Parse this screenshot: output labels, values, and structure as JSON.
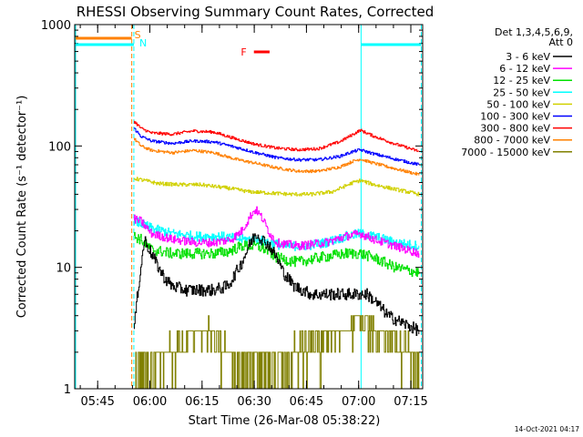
{
  "chart_data": {
    "type": "line",
    "title": "RHESSI Observing Summary Count Rates, Corrected",
    "xlabel": "Start Time (26-Mar-08 05:38:22)",
    "ylabel": "Corrected Count Rate (s⁻¹ detector⁻¹)",
    "yscale": "log",
    "ylim": [
      1,
      1000
    ],
    "xlim_minutes": [
      0,
      100
    ],
    "xtick_labels": [
      "05:45",
      "06:00",
      "06:15",
      "06:30",
      "06:45",
      "07:00",
      "07:15"
    ],
    "xtick_minutes": [
      6.6,
      21.6,
      36.6,
      51.6,
      66.6,
      81.6,
      96.6
    ],
    "ytick_labels": [
      "1",
      "10",
      "100",
      "1000"
    ],
    "ytick_values": [
      1,
      10,
      100,
      1000
    ],
    "legend_position": "right",
    "legend_header": [
      "Det 1,3,4,5,6,9,",
      "Att 0"
    ],
    "footer_date": "14-Oct-2021 04:17",
    "data_start_minute": 17.0,
    "night_start_minute": 82.3,
    "data_end_minute": 99.6,
    "series": [
      {
        "name": "3 - 6 keV",
        "color": "#000000",
        "noise": 0.05,
        "quantized": false,
        "points": [
          [
            17,
            3
          ],
          [
            18,
            6
          ],
          [
            20,
            17
          ],
          [
            22,
            13
          ],
          [
            24,
            10
          ],
          [
            26,
            8
          ],
          [
            28,
            7
          ],
          [
            32,
            6.5
          ],
          [
            40,
            6.5
          ],
          [
            44,
            7
          ],
          [
            48,
            11
          ],
          [
            50,
            15
          ],
          [
            52,
            19
          ],
          [
            56,
            15
          ],
          [
            58,
            12
          ],
          [
            60,
            9
          ],
          [
            63,
            7
          ],
          [
            68,
            6
          ],
          [
            75,
            6
          ],
          [
            80,
            6
          ],
          [
            84,
            6
          ],
          [
            87,
            5
          ],
          [
            90,
            4
          ],
          [
            94,
            3.5
          ],
          [
            99,
            3
          ]
        ]
      },
      {
        "name": "6 - 12 keV",
        "color": "#ff00ff",
        "noise": 0.035,
        "quantized": false,
        "points": [
          [
            17,
            25
          ],
          [
            19,
            24
          ],
          [
            22,
            19
          ],
          [
            28,
            17
          ],
          [
            35,
            16
          ],
          [
            40,
            16
          ],
          [
            45,
            17
          ],
          [
            48,
            20
          ],
          [
            51,
            28
          ],
          [
            52,
            30
          ],
          [
            54,
            25
          ],
          [
            56,
            19
          ],
          [
            58,
            16
          ],
          [
            64,
            15
          ],
          [
            72,
            16
          ],
          [
            78,
            18
          ],
          [
            82,
            19
          ],
          [
            86,
            17
          ],
          [
            92,
            15
          ],
          [
            99,
            13
          ]
        ]
      },
      {
        "name": "12 - 25 keV",
        "color": "#00e000",
        "noise": 0.045,
        "quantized": false,
        "points": [
          [
            17,
            18
          ],
          [
            19,
            17
          ],
          [
            22,
            14
          ],
          [
            28,
            13
          ],
          [
            34,
            13
          ],
          [
            40,
            13
          ],
          [
            44,
            13.5
          ],
          [
            48,
            15
          ],
          [
            52,
            15
          ],
          [
            55,
            14
          ],
          [
            58,
            12
          ],
          [
            64,
            11
          ],
          [
            70,
            12
          ],
          [
            78,
            13
          ],
          [
            82,
            13
          ],
          [
            86,
            12
          ],
          [
            92,
            10
          ],
          [
            99,
            9
          ]
        ]
      },
      {
        "name": "25 - 50 keV",
        "color": "#00ffff",
        "noise": 0.04,
        "quantized": false,
        "points": [
          [
            17,
            24
          ],
          [
            19,
            23
          ],
          [
            22,
            21
          ],
          [
            28,
            19
          ],
          [
            35,
            18
          ],
          [
            42,
            18
          ],
          [
            48,
            17
          ],
          [
            52,
            17
          ],
          [
            56,
            16
          ],
          [
            60,
            15
          ],
          [
            66,
            15
          ],
          [
            72,
            16
          ],
          [
            78,
            18
          ],
          [
            82,
            19
          ],
          [
            86,
            18
          ],
          [
            92,
            16
          ],
          [
            99,
            15
          ]
        ]
      },
      {
        "name": "50 - 100 keV",
        "color": "#d0d000",
        "noise": 0.015,
        "quantized": false,
        "points": [
          [
            17,
            54
          ],
          [
            20,
            52
          ],
          [
            24,
            49
          ],
          [
            30,
            48
          ],
          [
            36,
            48
          ],
          [
            44,
            45
          ],
          [
            50,
            42
          ],
          [
            56,
            41
          ],
          [
            62,
            40
          ],
          [
            68,
            40
          ],
          [
            74,
            42
          ],
          [
            80,
            50
          ],
          [
            82,
            52
          ],
          [
            86,
            48
          ],
          [
            92,
            44
          ],
          [
            99,
            40
          ]
        ]
      },
      {
        "name": "100 - 300 keV",
        "color": "#0000ff",
        "noise": 0.012,
        "quantized": false,
        "points": [
          [
            17,
            140
          ],
          [
            19,
            120
          ],
          [
            22,
            110
          ],
          [
            28,
            105
          ],
          [
            34,
            110
          ],
          [
            40,
            108
          ],
          [
            46,
            98
          ],
          [
            52,
            88
          ],
          [
            58,
            80
          ],
          [
            64,
            77
          ],
          [
            70,
            77
          ],
          [
            76,
            82
          ],
          [
            80,
            90
          ],
          [
            82,
            93
          ],
          [
            86,
            86
          ],
          [
            92,
            78
          ],
          [
            99,
            70
          ]
        ]
      },
      {
        "name": "300 - 800 keV",
        "color": "#ff0000",
        "noise": 0.012,
        "quantized": false,
        "points": [
          [
            17,
            160
          ],
          [
            19,
            140
          ],
          [
            22,
            128
          ],
          [
            28,
            125
          ],
          [
            34,
            133
          ],
          [
            40,
            130
          ],
          [
            46,
            115
          ],
          [
            52,
            103
          ],
          [
            58,
            96
          ],
          [
            64,
            93
          ],
          [
            70,
            95
          ],
          [
            76,
            108
          ],
          [
            80,
            125
          ],
          [
            82,
            135
          ],
          [
            86,
            120
          ],
          [
            92,
            104
          ],
          [
            99,
            90
          ]
        ]
      },
      {
        "name": "800 - 7000 keV",
        "color": "#ff8000",
        "noise": 0.012,
        "quantized": false,
        "points": [
          [
            17,
            115
          ],
          [
            19,
            100
          ],
          [
            22,
            92
          ],
          [
            28,
            88
          ],
          [
            34,
            92
          ],
          [
            40,
            88
          ],
          [
            46,
            78
          ],
          [
            52,
            72
          ],
          [
            58,
            66
          ],
          [
            64,
            62
          ],
          [
            70,
            62
          ],
          [
            76,
            67
          ],
          [
            80,
            75
          ],
          [
            82,
            78
          ],
          [
            86,
            72
          ],
          [
            92,
            65
          ],
          [
            99,
            58
          ]
        ]
      },
      {
        "name": "7000 - 15000 keV",
        "color": "#808000",
        "noise": 0,
        "quantized": true,
        "levels": [
          1,
          2,
          3,
          4
        ],
        "points": [
          [
            17,
            1.6
          ],
          [
            22,
            1.7
          ],
          [
            28,
            2.2
          ],
          [
            34,
            2.8
          ],
          [
            38,
            3.2
          ],
          [
            42,
            2.5
          ],
          [
            46,
            1.8
          ],
          [
            50,
            1.6
          ],
          [
            54,
            1.6
          ],
          [
            60,
            1.8
          ],
          [
            64,
            2.2
          ],
          [
            70,
            2.6
          ],
          [
            76,
            3.2
          ],
          [
            80,
            3.6
          ],
          [
            84,
            3.4
          ],
          [
            88,
            3
          ],
          [
            92,
            2.6
          ],
          [
            96,
            2.1
          ],
          [
            99,
            1.8
          ]
        ]
      }
    ],
    "flags": [
      {
        "label": "S",
        "color": "#ff8000",
        "start_minute": 0,
        "end_minute": 16.4
      },
      {
        "label": "N",
        "color": "#00ffff",
        "start_minute": 0,
        "end_minute": 17.0
      },
      {
        "label": "N",
        "color": "#00ffff",
        "start_minute": 82.3,
        "end_minute": 99.6
      },
      {
        "label": "F",
        "color": "#ff0000",
        "start_minute": 51.5,
        "end_minute": 56.0
      }
    ]
  }
}
